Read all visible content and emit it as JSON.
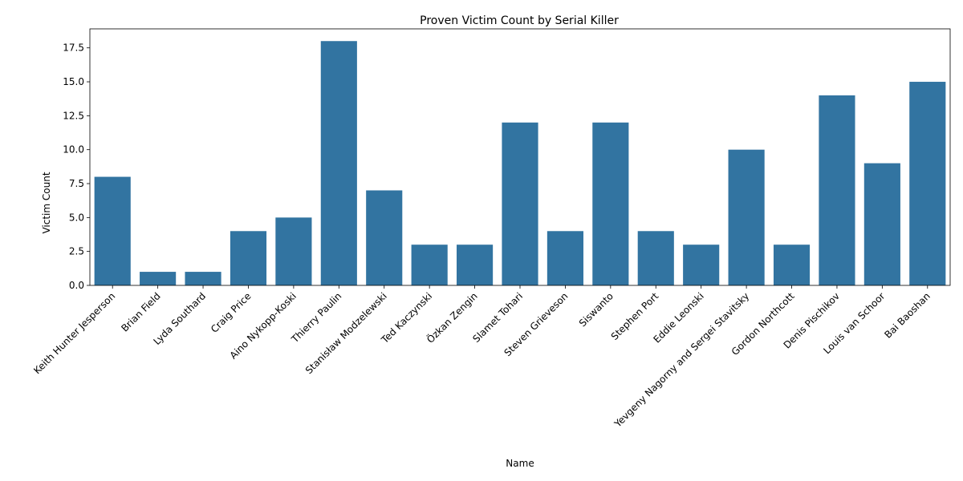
{
  "chart_data": {
    "type": "bar",
    "title": "Proven Victim Count by Serial Killer",
    "xlabel": "Name",
    "ylabel": "Victim Count",
    "categories": [
      "Keith Hunter Jesperson",
      "Brian Field",
      "Lyda Southard",
      "Craig Price",
      "Aino Nykopp-Koski",
      "Thierry Paulin",
      "Stanisław Modzelewski",
      "Ted Kaczynski",
      "Özkan Zengin",
      "Slamet Tohari",
      "Steven Grieveson",
      "Siswanto",
      "Stephen Port",
      "Eddie Leonski",
      "Yevgeny Nagorny and Sergei Stavitsky",
      "Gordon Northcott",
      "Denis Pischikov",
      "Louis van Schoor",
      "Bai Baoshan"
    ],
    "values": [
      8,
      1,
      1,
      4,
      5,
      18,
      7,
      3,
      3,
      12,
      4,
      12,
      4,
      3,
      10,
      3,
      14,
      9,
      15
    ],
    "ylim": [
      0,
      18.9
    ],
    "yticks": [
      "0.0",
      "2.5",
      "5.0",
      "7.5",
      "10.0",
      "12.5",
      "15.0",
      "17.5"
    ],
    "grid": false,
    "bar_color": "#3274a1"
  }
}
